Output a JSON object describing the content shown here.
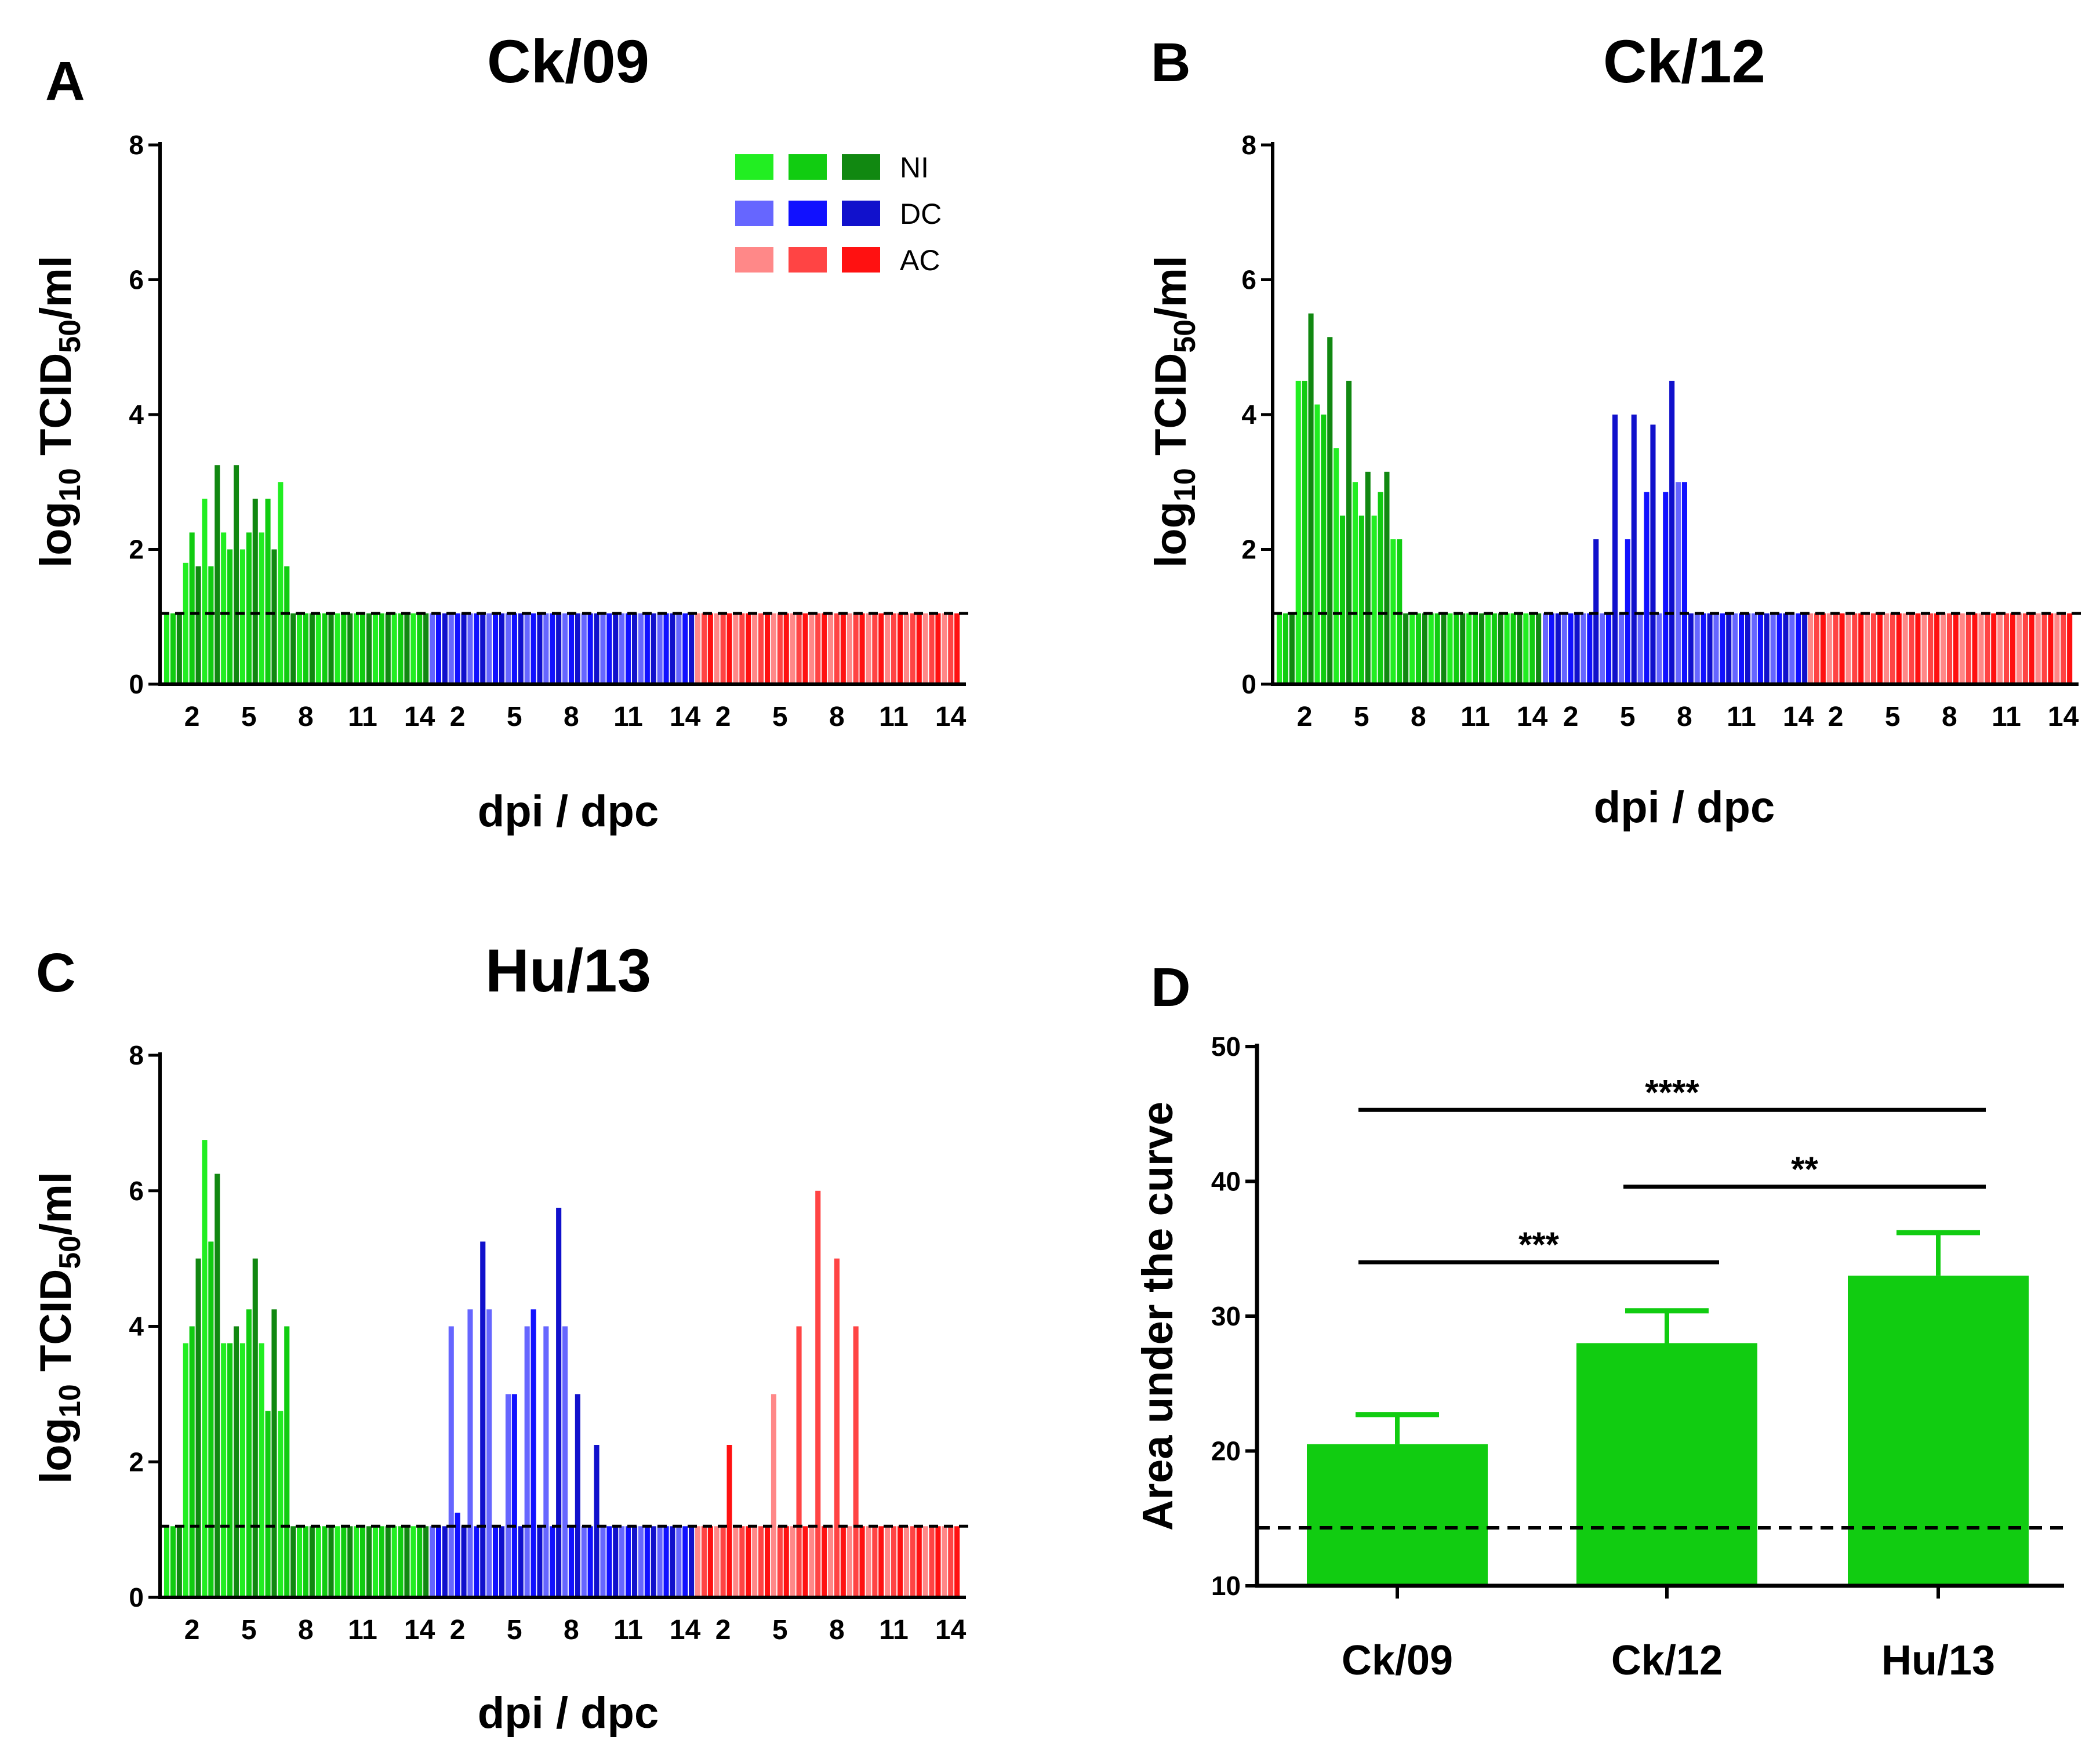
{
  "chart_data": [
    {
      "id": "A",
      "type": "bar",
      "panel_letter": "A",
      "title": "Ck/09",
      "ylabel_pre": "log",
      "ylabel_sub": "10",
      "ylabel_mid": " TCID",
      "ylabel_sub2": "50",
      "ylabel_post": "/ml",
      "xlabel": "dpi / dpc",
      "ylim": [
        0,
        8
      ],
      "yticks": [
        "0",
        "2",
        "4",
        "6",
        "8"
      ],
      "group_tick_labels": [
        "2",
        "5",
        "8",
        "11",
        "14"
      ],
      "detection_limit": 1.05,
      "legend": [
        {
          "label": "NI",
          "colors": [
            "#22ee22",
            "#11cc11",
            "#118811"
          ]
        },
        {
          "label": "DC",
          "colors": [
            "#6666ff",
            "#1111ff",
            "#1111cc"
          ]
        },
        {
          "label": "AC",
          "colors": [
            "#ff8888",
            "#ff4444",
            "#ff1111"
          ]
        }
      ],
      "groups": [
        {
          "name": "NI",
          "colors": [
            "#22ee22",
            "#11cc11",
            "#118811"
          ],
          "values": [
            [
              1.05,
              1.05,
              1.05
            ],
            [
              1.8,
              2.25,
              1.75
            ],
            [
              2.75,
              1.75,
              3.25
            ],
            [
              2.25,
              2.0,
              3.25
            ],
            [
              2.0,
              2.25,
              2.75
            ],
            [
              2.25,
              2.75,
              2.0
            ],
            [
              3.0,
              1.75,
              1.05
            ],
            [
              1.05,
              1.05,
              1.05
            ],
            [
              1.05,
              1.05,
              1.05
            ],
            [
              1.05,
              1.05,
              1.05
            ],
            [
              1.05,
              1.05,
              1.05
            ],
            [
              1.05,
              1.05,
              1.05
            ],
            [
              1.05,
              1.05,
              1.05
            ],
            [
              1.05,
              1.05,
              1.05
            ]
          ]
        },
        {
          "name": "DC",
          "colors": [
            "#6666ff",
            "#1111ff",
            "#1111cc"
          ],
          "values": [
            [
              1.05,
              1.05,
              1.05
            ],
            [
              1.05,
              1.05,
              1.05
            ],
            [
              1.05,
              1.05,
              1.05
            ],
            [
              1.05,
              1.05,
              1.05
            ],
            [
              1.05,
              1.05,
              1.05
            ],
            [
              1.05,
              1.05,
              1.05
            ],
            [
              1.05,
              1.05,
              1.05
            ],
            [
              1.05,
              1.05,
              1.05
            ],
            [
              1.05,
              1.05,
              1.05
            ],
            [
              1.05,
              1.05,
              1.05
            ],
            [
              1.05,
              1.05,
              1.05
            ],
            [
              1.05,
              1.05,
              1.05
            ],
            [
              1.05,
              1.05,
              1.05
            ],
            [
              1.05,
              1.05,
              1.05
            ]
          ]
        },
        {
          "name": "AC",
          "colors": [
            "#ff8888",
            "#ff4444",
            "#ff1111"
          ],
          "values": [
            [
              1.05,
              1.05,
              1.05
            ],
            [
              1.05,
              1.05,
              1.05
            ],
            [
              1.05,
              1.05,
              1.05
            ],
            [
              1.05,
              1.05,
              1.05
            ],
            [
              1.05,
              1.05,
              1.05
            ],
            [
              1.05,
              1.05,
              1.05
            ],
            [
              1.05,
              1.05,
              1.05
            ],
            [
              1.05,
              1.05,
              1.05
            ],
            [
              1.05,
              1.05,
              1.05
            ],
            [
              1.05,
              1.05,
              1.05
            ],
            [
              1.05,
              1.05,
              1.05
            ],
            [
              1.05,
              1.05,
              1.05
            ],
            [
              1.05,
              1.05,
              1.05
            ],
            [
              1.05,
              1.05,
              1.05
            ]
          ]
        }
      ]
    },
    {
      "id": "B",
      "type": "bar",
      "panel_letter": "B",
      "title": "Ck/12",
      "ylabel_pre": "log",
      "ylabel_sub": "10",
      "ylabel_mid": " TCID",
      "ylabel_sub2": "50",
      "ylabel_post": "/ml",
      "xlabel": "dpi / dpc",
      "ylim": [
        0,
        8
      ],
      "yticks": [
        "0",
        "2",
        "4",
        "6",
        "8"
      ],
      "group_tick_labels": [
        "2",
        "5",
        "8",
        "11",
        "14"
      ],
      "detection_limit": 1.05,
      "groups": [
        {
          "name": "NI",
          "colors": [
            "#22ee22",
            "#11cc11",
            "#118811"
          ],
          "values": [
            [
              1.05,
              1.05,
              1.05
            ],
            [
              4.5,
              4.5,
              5.5
            ],
            [
              4.15,
              4.0,
              5.15
            ],
            [
              3.5,
              2.5,
              4.5
            ],
            [
              3.0,
              2.5,
              3.15
            ],
            [
              2.5,
              2.85,
              3.15
            ],
            [
              2.15,
              2.15,
              1.05
            ],
            [
              1.05,
              1.05,
              1.05
            ],
            [
              1.05,
              1.05,
              1.05
            ],
            [
              1.05,
              1.05,
              1.05
            ],
            [
              1.05,
              1.05,
              1.05
            ],
            [
              1.05,
              1.05,
              1.05
            ],
            [
              1.05,
              1.05,
              1.05
            ],
            [
              1.05,
              1.05,
              1.05
            ]
          ]
        },
        {
          "name": "DC",
          "colors": [
            "#6666ff",
            "#1111ff",
            "#1111cc"
          ],
          "values": [
            [
              1.05,
              1.05,
              1.05
            ],
            [
              1.05,
              1.05,
              1.05
            ],
            [
              1.05,
              1.05,
              2.15
            ],
            [
              1.05,
              1.05,
              4.0
            ],
            [
              1.05,
              2.15,
              4.0
            ],
            [
              1.05,
              2.85,
              3.85
            ],
            [
              1.05,
              2.85,
              4.5
            ],
            [
              3.0,
              3.0,
              1.05
            ],
            [
              1.05,
              1.05,
              1.05
            ],
            [
              1.05,
              1.05,
              1.05
            ],
            [
              1.05,
              1.05,
              1.05
            ],
            [
              1.05,
              1.05,
              1.05
            ],
            [
              1.05,
              1.05,
              1.05
            ],
            [
              1.05,
              1.05,
              1.05
            ]
          ]
        },
        {
          "name": "AC",
          "colors": [
            "#ff8888",
            "#ff4444",
            "#ff1111"
          ],
          "values": [
            [
              1.05,
              1.05,
              1.05
            ],
            [
              1.05,
              1.05,
              1.05
            ],
            [
              1.05,
              1.05,
              1.05
            ],
            [
              1.05,
              1.05,
              1.05
            ],
            [
              1.05,
              1.05,
              1.05
            ],
            [
              1.05,
              1.05,
              1.05
            ],
            [
              1.05,
              1.05,
              1.05
            ],
            [
              1.05,
              1.05,
              1.05
            ],
            [
              1.05,
              1.05,
              1.05
            ],
            [
              1.05,
              1.05,
              1.05
            ],
            [
              1.05,
              1.05,
              1.05
            ],
            [
              1.05,
              1.05,
              1.05
            ],
            [
              1.05,
              1.05,
              1.05
            ],
            [
              1.05,
              1.05,
              1.05
            ]
          ]
        }
      ]
    },
    {
      "id": "C",
      "type": "bar",
      "panel_letter": "C",
      "title": "Hu/13",
      "ylabel_pre": "log",
      "ylabel_sub": "10",
      "ylabel_mid": " TCID",
      "ylabel_sub2": "50",
      "ylabel_post": "/ml",
      "xlabel": "dpi / dpc",
      "ylim": [
        0,
        8
      ],
      "yticks": [
        "0",
        "2",
        "4",
        "6",
        "8"
      ],
      "group_tick_labels": [
        "2",
        "5",
        "8",
        "11",
        "14"
      ],
      "detection_limit": 1.05,
      "groups": [
        {
          "name": "NI",
          "colors": [
            "#22ee22",
            "#11cc11",
            "#118811"
          ],
          "values": [
            [
              1.05,
              1.05,
              1.05
            ],
            [
              3.75,
              4.0,
              5.0
            ],
            [
              6.75,
              5.25,
              6.25
            ],
            [
              3.75,
              3.75,
              4.0
            ],
            [
              3.75,
              4.25,
              5.0
            ],
            [
              3.75,
              2.75,
              4.25
            ],
            [
              2.75,
              4.0,
              1.05
            ],
            [
              1.05,
              1.05,
              1.05
            ],
            [
              1.05,
              1.05,
              1.05
            ],
            [
              1.05,
              1.05,
              1.05
            ],
            [
              1.05,
              1.05,
              1.05
            ],
            [
              1.05,
              1.05,
              1.05
            ],
            [
              1.05,
              1.05,
              1.05
            ],
            [
              1.05,
              1.05,
              1.05
            ]
          ]
        },
        {
          "name": "DC",
          "colors": [
            "#6666ff",
            "#1111ff",
            "#1111cc"
          ],
          "values": [
            [
              1.05,
              1.05,
              1.05
            ],
            [
              4.0,
              1.25,
              1.05
            ],
            [
              4.25,
              1.05,
              5.25
            ],
            [
              4.25,
              1.05,
              1.05
            ],
            [
              3.0,
              3.0,
              1.05
            ],
            [
              4.0,
              4.25,
              1.05
            ],
            [
              4.0,
              1.05,
              5.75
            ],
            [
              4.0,
              1.05,
              3.0
            ],
            [
              1.05,
              1.05,
              2.25
            ],
            [
              1.05,
              1.05,
              1.05
            ],
            [
              1.05,
              1.05,
              1.05
            ],
            [
              1.05,
              1.05,
              1.05
            ],
            [
              1.05,
              1.05,
              1.05
            ],
            [
              1.05,
              1.05,
              1.05
            ]
          ]
        },
        {
          "name": "AC",
          "colors": [
            "#ff8888",
            "#ff4444",
            "#ff1111"
          ],
          "values": [
            [
              1.05,
              1.05,
              1.05
            ],
            [
              1.05,
              1.05,
              2.25
            ],
            [
              1.05,
              1.05,
              1.05
            ],
            [
              1.05,
              1.05,
              1.05
            ],
            [
              3.0,
              1.05,
              1.05
            ],
            [
              1.05,
              4.0,
              1.05
            ],
            [
              1.05,
              6.0,
              1.05
            ],
            [
              1.05,
              5.0,
              1.05
            ],
            [
              1.05,
              4.0,
              1.05
            ],
            [
              1.05,
              1.05,
              1.05
            ],
            [
              1.05,
              1.05,
              1.05
            ],
            [
              1.05,
              1.05,
              1.05
            ],
            [
              1.05,
              1.05,
              1.05
            ],
            [
              1.05,
              1.05,
              1.05
            ]
          ]
        }
      ]
    },
    {
      "id": "D",
      "type": "bar",
      "panel_letter": "D",
      "ylabel": "Area under the curve",
      "ylim": [
        10,
        50
      ],
      "yticks": [
        "10",
        "20",
        "30",
        "40",
        "50"
      ],
      "categories": [
        "Ck/09",
        "Ck/12",
        "Hu/13"
      ],
      "values": [
        20.5,
        28.0,
        33.0
      ],
      "errors": [
        2.2,
        2.4,
        3.2
      ],
      "bar_color": "#11cc11",
      "detection_limit": 14.3,
      "significance": [
        {
          "from": 0,
          "to": 1,
          "label": "***",
          "y": 34.0
        },
        {
          "from": 1,
          "to": 2,
          "label": "**",
          "y": 39.6
        },
        {
          "from": 0,
          "to": 2,
          "label": "****",
          "y": 45.3
        }
      ]
    }
  ]
}
